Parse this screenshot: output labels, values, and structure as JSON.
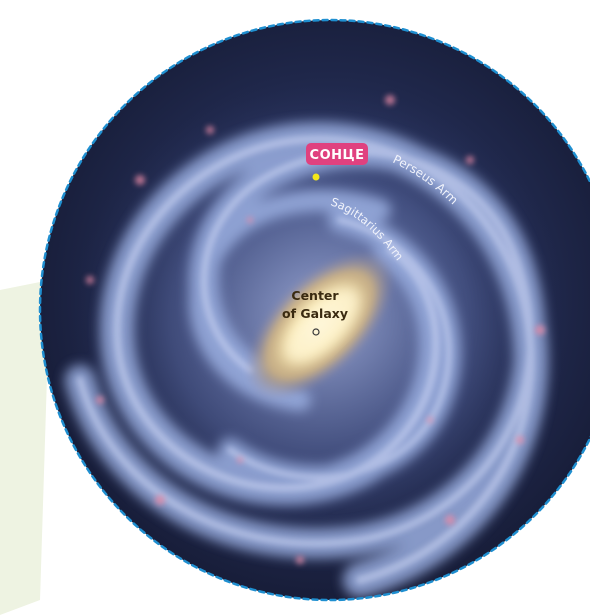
{
  "labels": {
    "sun": "СОНЦЕ",
    "perseus_arm": "Perseus Arm",
    "sagittarius_arm": "Sagittarius Arm",
    "center_line1": "Center",
    "center_line2": "of Galaxy"
  },
  "colors": {
    "page_background": "#ffffff",
    "side_panel": "#eef3e2",
    "border_scallop": "#1f8fd0",
    "space": "#141a33",
    "arm_glow": "#8fa3d6",
    "core": "#f4e2a6",
    "sun_marker": "#f4e81a",
    "sun_label_bg": "#e0417f"
  },
  "icons": {
    "sun_marker": "yellow-dot",
    "galactic_center_marker": "small-circle"
  }
}
